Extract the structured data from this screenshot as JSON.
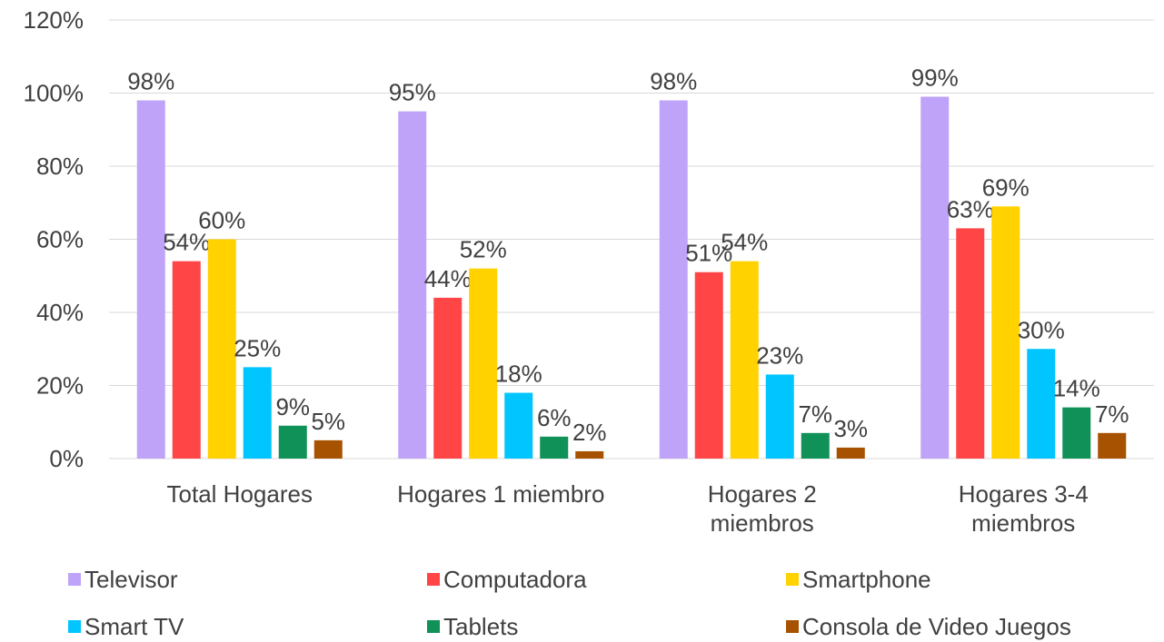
{
  "chart_data": {
    "type": "bar",
    "categories": [
      "Total Hogares",
      "Hogares 1 miembro",
      "Hogares 2 miembros",
      "Hogares 3-4 miembros"
    ],
    "series": [
      {
        "name": "Televisor",
        "color": "#bfa3f9",
        "values": [
          98,
          95,
          98,
          99
        ],
        "value_labels": [
          "98%",
          "95%",
          "98%",
          "99%"
        ]
      },
      {
        "name": "Computadora",
        "color": "#ff4545",
        "values": [
          54,
          44,
          51,
          63
        ],
        "value_labels": [
          "54%",
          "44%",
          "51%",
          "63%"
        ]
      },
      {
        "name": "Smartphone",
        "color": "#ffd200",
        "values": [
          60,
          52,
          54,
          69
        ],
        "value_labels": [
          "60%",
          "52%",
          "54%",
          "69%"
        ]
      },
      {
        "name": "Smart TV",
        "color": "#00c5ff",
        "values": [
          25,
          18,
          23,
          30
        ],
        "value_labels": [
          "25%",
          "18%",
          "23%",
          "30%"
        ]
      },
      {
        "name": "Tablets",
        "color": "#109157",
        "values": [
          9,
          6,
          7,
          14
        ],
        "value_labels": [
          "9%",
          "6%",
          "7%",
          "14%"
        ]
      },
      {
        "name": "Consola de Video Juegos",
        "color": "#a65200",
        "values": [
          5,
          2,
          3,
          7
        ],
        "value_labels": [
          "5%",
          "2%",
          "3%",
          "7%"
        ]
      }
    ],
    "ylim": [
      0,
      120
    ],
    "yticks": [
      {
        "value": 0,
        "label": "0%"
      },
      {
        "value": 20,
        "label": "20%"
      },
      {
        "value": 40,
        "label": "40%"
      },
      {
        "value": 60,
        "label": "60%"
      },
      {
        "value": 80,
        "label": "80%"
      },
      {
        "value": 100,
        "label": "100%"
      },
      {
        "value": 120,
        "label": "120%"
      }
    ],
    "grid": true,
    "legend": "bottom"
  }
}
